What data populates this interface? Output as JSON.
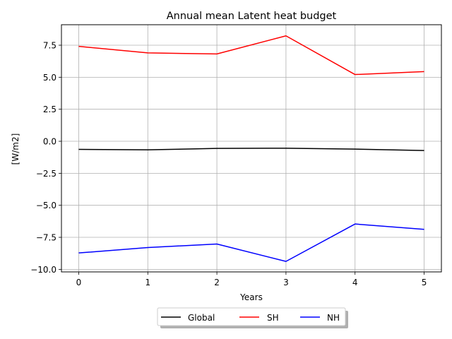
{
  "chart_data": {
    "type": "line",
    "title": "Annual mean Latent heat budget",
    "xlabel": "Years",
    "ylabel": "[W/m2]",
    "x": [
      0,
      1,
      2,
      3,
      4,
      5
    ],
    "xlim": [
      -0.25,
      5.25
    ],
    "ylim": [
      -10.2,
      9.1
    ],
    "xticks": [
      0,
      1,
      2,
      3,
      4,
      5
    ],
    "xtick_labels": [
      "0",
      "1",
      "2",
      "3",
      "4",
      "5"
    ],
    "yticks": [
      -10.0,
      -7.5,
      -5.0,
      -2.5,
      0.0,
      2.5,
      5.0,
      7.5
    ],
    "ytick_labels": [
      "−10.0",
      "−7.5",
      "−5.0",
      "−2.5",
      "0.0",
      "2.5",
      "5.0",
      "7.5"
    ],
    "grid": true,
    "legend_position": "below plot, centered",
    "series": [
      {
        "name": "Global",
        "color": "#000000",
        "values": [
          -0.63,
          -0.67,
          -0.56,
          -0.54,
          -0.61,
          -0.72
        ]
      },
      {
        "name": "SH",
        "color": "#ff0000",
        "values": [
          7.41,
          6.9,
          6.82,
          8.23,
          5.21,
          5.44
        ]
      },
      {
        "name": "NH",
        "color": "#0000ff",
        "values": [
          -8.72,
          -8.3,
          -8.02,
          -9.38,
          -6.46,
          -6.88
        ]
      }
    ]
  }
}
